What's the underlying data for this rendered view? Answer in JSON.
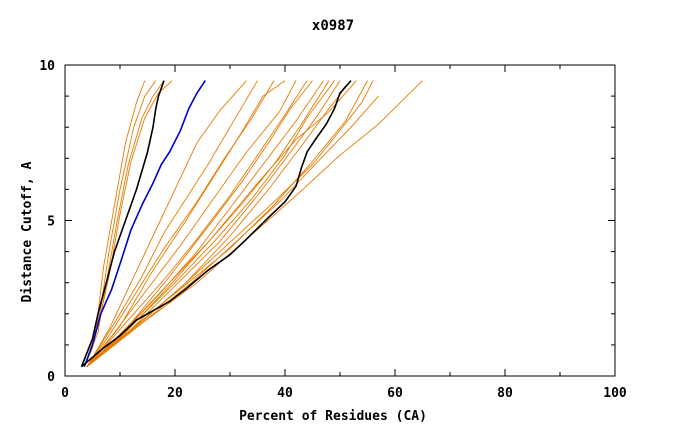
{
  "chart_data": {
    "type": "line",
    "title": "x0987",
    "xlabel": "Percent of Residues (CA)",
    "ylabel": "Distance Cutoff, A",
    "xlim": [
      0,
      100
    ],
    "ylim": [
      0,
      10
    ],
    "xticks": [
      0,
      20,
      40,
      60,
      80,
      100
    ],
    "yticks": [
      0,
      5,
      10
    ],
    "xtick_labels": [
      "0",
      "20",
      "40",
      "60",
      "80",
      "100"
    ],
    "ytick_labels": [
      "0",
      "5",
      "10"
    ],
    "grid": false,
    "colors": {
      "orange": "#e87a00",
      "black": "#000000",
      "blue": "#0000cc"
    },
    "series": [
      {
        "name": "orange-01",
        "color": "orange",
        "points": [
          [
            3.5,
            0.3
          ],
          [
            5,
            0.9
          ],
          [
            6,
            2
          ],
          [
            7,
            3.5
          ],
          [
            9,
            5.5
          ],
          [
            11,
            7.5
          ],
          [
            13,
            8.8
          ],
          [
            14.5,
            9.5
          ]
        ]
      },
      {
        "name": "orange-02",
        "color": "orange",
        "points": [
          [
            3.5,
            0.3
          ],
          [
            5,
            1
          ],
          [
            6.5,
            2.2
          ],
          [
            8,
            4
          ],
          [
            10,
            6
          ],
          [
            12.5,
            8
          ],
          [
            14.5,
            9
          ],
          [
            16.5,
            9.5
          ]
        ]
      },
      {
        "name": "orange-03",
        "color": "orange",
        "points": [
          [
            3.5,
            0.3
          ],
          [
            6,
            1.4
          ],
          [
            7.5,
            3
          ],
          [
            9.5,
            5
          ],
          [
            11.5,
            6.8
          ],
          [
            14,
            8.3
          ],
          [
            16,
            9
          ],
          [
            18,
            9.5
          ]
        ]
      },
      {
        "name": "orange-04",
        "color": "orange",
        "points": [
          [
            3.5,
            0.3
          ],
          [
            6,
            1.6
          ],
          [
            8,
            3.2
          ],
          [
            10,
            5.2
          ],
          [
            12,
            6.9
          ],
          [
            14.5,
            8.3
          ],
          [
            17,
            9.1
          ],
          [
            19.5,
            9.5
          ]
        ]
      },
      {
        "name": "orange-05",
        "color": "orange",
        "points": [
          [
            4,
            0.3
          ],
          [
            8,
            1.5
          ],
          [
            12,
            3
          ],
          [
            16,
            4.5
          ],
          [
            20,
            6
          ],
          [
            24,
            7.5
          ],
          [
            28,
            8.5
          ],
          [
            33,
            9.5
          ]
        ]
      },
      {
        "name": "orange-06",
        "color": "orange",
        "points": [
          [
            4,
            0.3
          ],
          [
            9,
            1.7
          ],
          [
            14,
            3.2
          ],
          [
            18,
            4.6
          ],
          [
            22,
            5.7
          ],
          [
            26,
            6.8
          ],
          [
            30,
            8
          ],
          [
            35,
            9.5
          ]
        ]
      },
      {
        "name": "orange-07",
        "color": "orange",
        "points": [
          [
            4,
            0.3
          ],
          [
            8,
            1.3
          ],
          [
            13,
            2.7
          ],
          [
            18,
            4.1
          ],
          [
            24,
            5.6
          ],
          [
            29,
            7
          ],
          [
            34,
            8.3
          ],
          [
            38,
            9.5
          ]
        ]
      },
      {
        "name": "orange-08",
        "color": "orange",
        "points": [
          [
            4,
            0.3
          ],
          [
            10,
            1.6
          ],
          [
            16,
            3.4
          ],
          [
            22,
            5
          ],
          [
            27,
            6.4
          ],
          [
            32,
            7.8
          ],
          [
            36,
            9
          ],
          [
            40,
            9.5
          ]
        ]
      },
      {
        "name": "orange-09",
        "color": "orange",
        "points": [
          [
            4,
            0.3
          ],
          [
            9,
            1.4
          ],
          [
            15,
            2.8
          ],
          [
            21,
            4.2
          ],
          [
            27,
            5.7
          ],
          [
            33,
            7.2
          ],
          [
            39,
            8.5
          ],
          [
            42,
            9.5
          ]
        ]
      },
      {
        "name": "orange-10",
        "color": "orange",
        "points": [
          [
            4,
            0.3
          ],
          [
            11,
            1.7
          ],
          [
            18,
            3.1
          ],
          [
            24,
            4.4
          ],
          [
            30,
            5.8
          ],
          [
            35,
            7.1
          ],
          [
            40,
            8.4
          ],
          [
            44,
            9.5
          ]
        ]
      },
      {
        "name": "orange-11",
        "color": "orange",
        "points": [
          [
            4,
            0.3
          ],
          [
            12,
            1.7
          ],
          [
            19,
            3.2
          ],
          [
            26,
            4.8
          ],
          [
            32,
            6.2
          ],
          [
            37,
            7.5
          ],
          [
            41,
            8.6
          ],
          [
            45,
            9.5
          ]
        ]
      },
      {
        "name": "orange-12",
        "color": "orange",
        "points": [
          [
            4,
            0.3
          ],
          [
            10,
            1.3
          ],
          [
            17,
            2.6
          ],
          [
            24,
            4
          ],
          [
            30,
            5.4
          ],
          [
            36,
            6.8
          ],
          [
            42,
            8.2
          ],
          [
            47,
            9.5
          ]
        ]
      },
      {
        "name": "orange-13",
        "color": "orange",
        "points": [
          [
            4,
            0.3
          ],
          [
            11,
            1.5
          ],
          [
            19,
            3
          ],
          [
            26,
            4.3
          ],
          [
            32,
            5.5
          ],
          [
            38,
            6.8
          ],
          [
            43,
            8.1
          ],
          [
            48,
            9.5
          ]
        ]
      },
      {
        "name": "orange-14",
        "color": "orange",
        "points": [
          [
            4,
            0.3
          ],
          [
            12,
            1.6
          ],
          [
            20,
            3
          ],
          [
            27,
            4.3
          ],
          [
            34,
            5.7
          ],
          [
            40,
            7.1
          ],
          [
            44,
            8.3
          ],
          [
            49,
            9.5
          ]
        ]
      },
      {
        "name": "orange-15",
        "color": "orange",
        "points": [
          [
            4,
            0.3
          ],
          [
            12,
            1.5
          ],
          [
            20,
            2.9
          ],
          [
            28,
            4.3
          ],
          [
            35,
            5.8
          ],
          [
            41,
            7.2
          ],
          [
            46,
            8.4
          ],
          [
            50,
            9.5
          ]
        ]
      },
      {
        "name": "orange-16",
        "color": "orange",
        "points": [
          [
            4,
            0.3
          ],
          [
            13,
            1.6
          ],
          [
            22,
            3
          ],
          [
            30,
            4.5
          ],
          [
            37,
            6
          ],
          [
            43,
            7.4
          ],
          [
            48,
            8.6
          ],
          [
            52,
            9.5
          ]
        ]
      },
      {
        "name": "orange-17",
        "color": "orange",
        "points": [
          [
            4,
            0.3
          ],
          [
            11,
            1.4
          ],
          [
            19,
            2.9
          ],
          [
            27,
            4.5
          ],
          [
            35,
            6.2
          ],
          [
            42,
            7.6
          ],
          [
            48,
            8.5
          ],
          [
            53,
            9.5
          ]
        ]
      },
      {
        "name": "orange-18",
        "color": "orange",
        "points": [
          [
            4,
            0.3
          ],
          [
            12,
            1.5
          ],
          [
            21,
            2.8
          ],
          [
            30,
            4.1
          ],
          [
            38,
            5.5
          ],
          [
            45,
            6.9
          ],
          [
            51,
            8.2
          ],
          [
            55,
            9.5
          ]
        ]
      },
      {
        "name": "orange-19",
        "color": "orange",
        "points": [
          [
            4,
            0.3
          ],
          [
            13,
            1.6
          ],
          [
            22,
            3
          ],
          [
            30,
            4.3
          ],
          [
            38,
            5.6
          ],
          [
            45,
            6.8
          ],
          [
            50,
            7.9
          ],
          [
            54,
            8.8
          ],
          [
            56,
            9.5
          ]
        ]
      },
      {
        "name": "orange-20",
        "color": "orange",
        "points": [
          [
            4,
            0.3
          ],
          [
            14,
            1.7
          ],
          [
            23,
            3
          ],
          [
            31,
            4.3
          ],
          [
            39,
            5.6
          ],
          [
            46,
            6.9
          ],
          [
            52,
            8
          ],
          [
            57,
            9
          ]
        ]
      },
      {
        "name": "orange-21",
        "color": "orange",
        "points": [
          [
            4,
            0.3
          ],
          [
            14,
            1.7
          ],
          [
            24,
            3
          ],
          [
            33,
            4.4
          ],
          [
            42,
            5.8
          ],
          [
            50,
            7.1
          ],
          [
            57,
            8.1
          ],
          [
            61,
            8.8
          ],
          [
            65,
            9.5
          ]
        ]
      },
      {
        "name": "black-left",
        "color": "black",
        "points": [
          [
            3,
            0.3
          ],
          [
            5,
            1.2
          ],
          [
            6,
            2
          ],
          [
            7.5,
            3
          ],
          [
            9,
            4
          ],
          [
            11,
            5
          ],
          [
            13,
            6
          ],
          [
            15,
            7.2
          ],
          [
            16,
            8
          ],
          [
            16.5,
            8.6
          ],
          [
            17,
            9
          ],
          [
            18,
            9.5
          ]
        ]
      },
      {
        "name": "blue",
        "color": "blue",
        "points": [
          [
            3.5,
            0.3
          ],
          [
            5,
            1
          ],
          [
            6.5,
            2
          ],
          [
            8.5,
            2.8
          ],
          [
            10,
            3.6
          ],
          [
            12,
            4.7
          ],
          [
            14,
            5.5
          ],
          [
            16,
            6.2
          ],
          [
            17.5,
            6.8
          ],
          [
            19,
            7.2
          ],
          [
            21,
            7.9
          ],
          [
            22.5,
            8.6
          ],
          [
            24,
            9.1
          ],
          [
            25.5,
            9.5
          ]
        ]
      },
      {
        "name": "black-right",
        "color": "black",
        "points": [
          [
            3,
            0.3
          ],
          [
            7,
            0.9
          ],
          [
            10,
            1.3
          ],
          [
            13,
            1.8
          ],
          [
            16,
            2.1
          ],
          [
            19,
            2.4
          ],
          [
            22,
            2.8
          ],
          [
            26,
            3.4
          ],
          [
            30,
            3.9
          ],
          [
            33,
            4.4
          ],
          [
            37,
            5.1
          ],
          [
            40,
            5.6
          ],
          [
            42,
            6.1
          ],
          [
            43,
            6.7
          ],
          [
            44,
            7.2
          ],
          [
            45.5,
            7.6
          ],
          [
            47.5,
            8.1
          ],
          [
            49,
            8.6
          ],
          [
            50,
            9.1
          ],
          [
            52,
            9.5
          ]
        ]
      }
    ]
  }
}
